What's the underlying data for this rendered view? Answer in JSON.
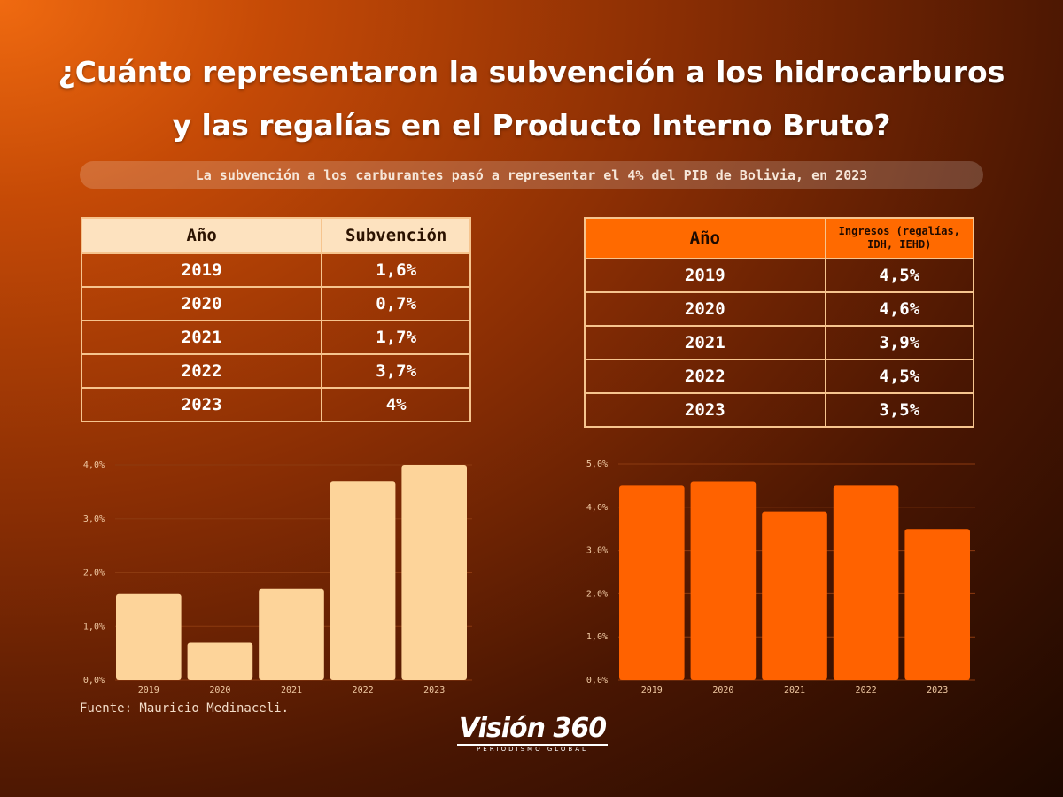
{
  "title_line1": "¿Cuánto representaron la subvención a los hidrocarburos",
  "title_line2": "y las regalías en el Producto Interno Bruto?",
  "subtitle": "La subvención a los carburantes pasó a representar el 4% del PIB de Bolivia, en 2023",
  "table1": {
    "headers": [
      "Año",
      "Subvención"
    ],
    "rows": [
      [
        "2019",
        "1,6%"
      ],
      [
        "2020",
        "0,7%"
      ],
      [
        "2021",
        "1,7%"
      ],
      [
        "2022",
        "3,7%"
      ],
      [
        "2023",
        "4%"
      ]
    ]
  },
  "table2": {
    "headers": [
      "Año",
      "Ingresos (regalías, IDH, IEHD)"
    ],
    "rows": [
      [
        "2019",
        "4,5%"
      ],
      [
        "2020",
        "4,6%"
      ],
      [
        "2021",
        "3,9%"
      ],
      [
        "2022",
        "4,5%"
      ],
      [
        "2023",
        "3,5%"
      ]
    ]
  },
  "source": "Fuente: Mauricio Medinaceli.",
  "logo": {
    "main": "Visión 360",
    "sub": "PERIODISMO GLOBAL"
  },
  "colors": {
    "bar1": "#fdd49a",
    "bar2": "#ff6200",
    "gridline": "#8c3a10"
  },
  "chart_data": [
    {
      "type": "bar",
      "categories": [
        "2019",
        "2020",
        "2021",
        "2022",
        "2023"
      ],
      "values": [
        1.6,
        0.7,
        1.7,
        3.7,
        4.0
      ],
      "ylim": [
        0,
        4
      ],
      "yticks": [
        "0,0%",
        "1,0%",
        "2,0%",
        "3,0%",
        "4,0%"
      ],
      "ytick_values": [
        0,
        1,
        2,
        3,
        4
      ],
      "grid": true
    },
    {
      "type": "bar",
      "categories": [
        "2019",
        "2020",
        "2021",
        "2022",
        "2023"
      ],
      "values": [
        4.5,
        4.6,
        3.9,
        4.5,
        3.5
      ],
      "ylim": [
        0,
        5
      ],
      "yticks": [
        "0,0%",
        "1,0%",
        "2,0%",
        "3,0%",
        "4,0%",
        "5,0%"
      ],
      "ytick_values": [
        0,
        1,
        2,
        3,
        4,
        5
      ],
      "grid": true
    }
  ]
}
